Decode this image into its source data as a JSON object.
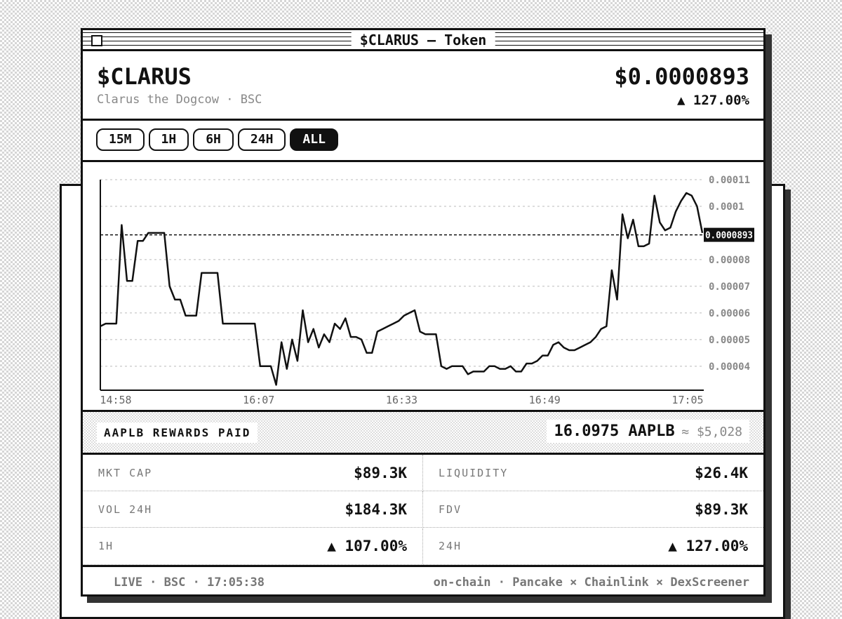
{
  "window_title": "$CLARUS — Token",
  "header": {
    "symbol": "$CLARUS",
    "name": "Clarus the Dogcow · BSC",
    "price": "$0.0000893",
    "change": "▲ 127.00%"
  },
  "timeframes": [
    "15M",
    "1H",
    "6H",
    "24H",
    "ALL"
  ],
  "active_timeframe": "ALL",
  "chart_data": {
    "type": "line",
    "color": "#111111",
    "grid": true,
    "xtick_labels": [
      "14:58",
      "16:07",
      "16:33",
      "16:49",
      "17:05"
    ],
    "values": [
      5.5e-05,
      5.6e-05,
      5.6e-05,
      5.6e-05,
      9.3e-05,
      7.2e-05,
      7.2e-05,
      8.7e-05,
      8.7e-05,
      9e-05,
      9e-05,
      9e-05,
      9e-05,
      7e-05,
      6.5e-05,
      6.5e-05,
      5.9e-05,
      5.9e-05,
      5.9e-05,
      7.5e-05,
      7.5e-05,
      7.5e-05,
      7.5e-05,
      5.6e-05,
      5.6e-05,
      5.6e-05,
      5.6e-05,
      5.6e-05,
      5.6e-05,
      5.6e-05,
      4e-05,
      4e-05,
      4e-05,
      3.3e-05,
      4.9e-05,
      3.9e-05,
      5e-05,
      4.2e-05,
      6.1e-05,
      4.9e-05,
      5.4e-05,
      4.7e-05,
      5.2e-05,
      4.9e-05,
      5.6e-05,
      5.4e-05,
      5.8e-05,
      5.1e-05,
      5.1e-05,
      5e-05,
      4.5e-05,
      4.5e-05,
      5.3e-05,
      5.4e-05,
      5.5e-05,
      5.6e-05,
      5.7e-05,
      5.9e-05,
      6e-05,
      6.1e-05,
      5.3e-05,
      5.2e-05,
      5.2e-05,
      5.2e-05,
      4e-05,
      3.9e-05,
      4e-05,
      4e-05,
      4e-05,
      3.7e-05,
      3.8e-05,
      3.8e-05,
      3.8e-05,
      4e-05,
      4e-05,
      3.9e-05,
      3.9e-05,
      4e-05,
      3.8e-05,
      3.8e-05,
      4.1e-05,
      4.1e-05,
      4.2e-05,
      4.4e-05,
      4.4e-05,
      4.8e-05,
      4.9e-05,
      4.7e-05,
      4.6e-05,
      4.6e-05,
      4.7e-05,
      4.8e-05,
      4.9e-05,
      5.1e-05,
      5.4e-05,
      5.5e-05,
      7.6e-05,
      6.5e-05,
      9.7e-05,
      8.8e-05,
      9.5e-05,
      8.5e-05,
      8.5e-05,
      8.6e-05,
      0.000104,
      9.4e-05,
      9.1e-05,
      9.2e-05,
      9.8e-05,
      0.000102,
      0.000105,
      0.000104,
      0.0001,
      9e-05
    ],
    "ylim": [
      3.1e-05,
      0.00011
    ],
    "yticks": [
      4e-05,
      5e-05,
      6e-05,
      7e-05,
      8e-05,
      0.0001,
      0.00011
    ],
    "current_price": 8.93e-05
  },
  "rewards": {
    "label": "AAPLB REWARDS PAID",
    "amount": "16.0975 AAPLB",
    "usd": "≈ $5,028"
  },
  "stats": [
    [
      "MKT CAP",
      "$89.3K"
    ],
    [
      "LIQUIDITY",
      "$26.4K"
    ],
    [
      "VOL 24H",
      "$184.3K"
    ],
    [
      "FDV",
      "$89.3K"
    ],
    [
      "1H",
      "▲ 107.00%"
    ],
    [
      "24H",
      "▲ 127.00%"
    ]
  ],
  "footer": {
    "left": "LIVE · BSC · 17:05:38",
    "right": "on-chain · Pancake × Chainlink × DexScreener"
  }
}
